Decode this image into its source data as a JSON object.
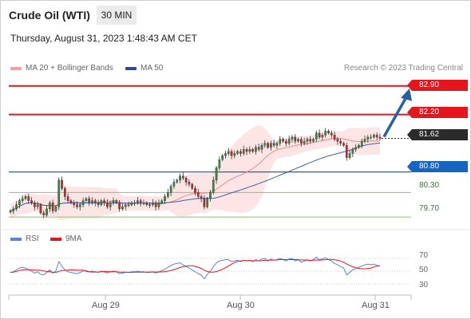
{
  "header": {
    "title": "Crude Oil (WTI)",
    "timeframe": "30 MIN",
    "datetime": "Thursday, August 31, 2023 1:48:43 AM CET"
  },
  "legend": {
    "ma20": "MA 20 + Bollinger Bands",
    "ma50": "MA 50",
    "credit": "Research © 2023 Trading Central"
  },
  "colors": {
    "resistance": "#e4161c",
    "support": "#1565c0",
    "current": "#2b2b2b",
    "target": "#2e7d32",
    "bollinger": "#fbd0d0",
    "ma20": "#f08a8a",
    "ma50": "#3e5fa8",
    "arrow": "#2a5fa6",
    "rsi": "#4a78d6",
    "rsi_ma": "#e4161c"
  },
  "levels": {
    "r2": "82.90",
    "r1": "82.20",
    "current": "81.62",
    "s1": "80.80",
    "s2": "80.30",
    "s3": "79.70"
  },
  "rsi_panel": {
    "legend_rsi": "RSI",
    "legend_ma": "9MA",
    "ticks": [
      "70",
      "50",
      "30"
    ]
  },
  "x_axis": {
    "labels": [
      "Aug 29",
      "Aug 30",
      "Aug 31"
    ]
  },
  "chart_data": {
    "type": "candlestick",
    "y_range": [
      79.45,
      83.05
    ],
    "rsi_range": [
      20,
      80
    ],
    "close_series": [
      79.85,
      79.9,
      80.0,
      80.1,
      80.15,
      80.2,
      80.1,
      80.05,
      79.95,
      80.0,
      79.8,
      79.75,
      79.9,
      80.05,
      79.85,
      79.95,
      80.6,
      80.4,
      80.2,
      80.1,
      80.05,
      80.0,
      79.95,
      80.0,
      80.1,
      80.15,
      80.05,
      80.1,
      80.05,
      80.0,
      80.1,
      80.05,
      79.95,
      80.05,
      80.1,
      80.05,
      79.9,
      79.95,
      80.0,
      80.0,
      80.05,
      80.05,
      80.1,
      80.05,
      80.05,
      80.0,
      80.0,
      80.05,
      79.95,
      80.05,
      80.1,
      80.2,
      80.3,
      80.45,
      80.55,
      80.6,
      80.7,
      80.65,
      80.55,
      80.5,
      80.4,
      80.3,
      80.2,
      80.15,
      79.95,
      80.15,
      80.3,
      80.6,
      80.9,
      81.1,
      81.2,
      81.25,
      81.3,
      81.2,
      81.25,
      81.3,
      81.25,
      81.35,
      81.3,
      81.35,
      81.3,
      81.4,
      81.35,
      81.45,
      81.5,
      81.4,
      81.5,
      81.45,
      81.5,
      81.6,
      81.55,
      81.5,
      81.6,
      81.65,
      81.55,
      81.6,
      81.5,
      81.55,
      81.6,
      81.55,
      81.6,
      81.75,
      81.65,
      81.7,
      81.8,
      81.75,
      81.7,
      81.6,
      81.55,
      81.5,
      81.45,
      81.15,
      81.25,
      81.35,
      81.4,
      81.45,
      81.55,
      81.6,
      81.65,
      81.65,
      81.7,
      81.65,
      81.62
    ],
    "rsi_series": [
      48,
      49,
      52,
      55,
      56,
      55,
      52,
      50,
      47,
      49,
      45,
      44,
      48,
      52,
      47,
      50,
      65,
      58,
      52,
      49,
      48,
      47,
      46,
      48,
      50,
      51,
      49,
      50,
      49,
      48,
      50,
      49,
      47,
      49,
      50,
      49,
      46,
      47,
      48,
      48,
      49,
      49,
      50,
      49,
      49,
      48,
      48,
      49,
      47,
      49,
      51,
      53,
      56,
      59,
      61,
      62,
      63,
      60,
      57,
      55,
      52,
      49,
      46,
      44,
      38,
      45,
      50,
      57,
      63,
      66,
      67,
      68,
      68,
      65,
      66,
      67,
      65,
      67,
      66,
      67,
      65,
      68,
      66,
      69,
      70,
      66,
      69,
      67,
      68,
      70,
      68,
      66,
      69,
      70,
      66,
      68,
      64,
      66,
      68,
      66,
      68,
      72,
      68,
      69,
      71,
      68,
      66,
      62,
      60,
      57,
      55,
      44,
      48,
      52,
      54,
      56,
      58,
      60,
      61,
      60,
      61,
      59,
      58
    ]
  }
}
